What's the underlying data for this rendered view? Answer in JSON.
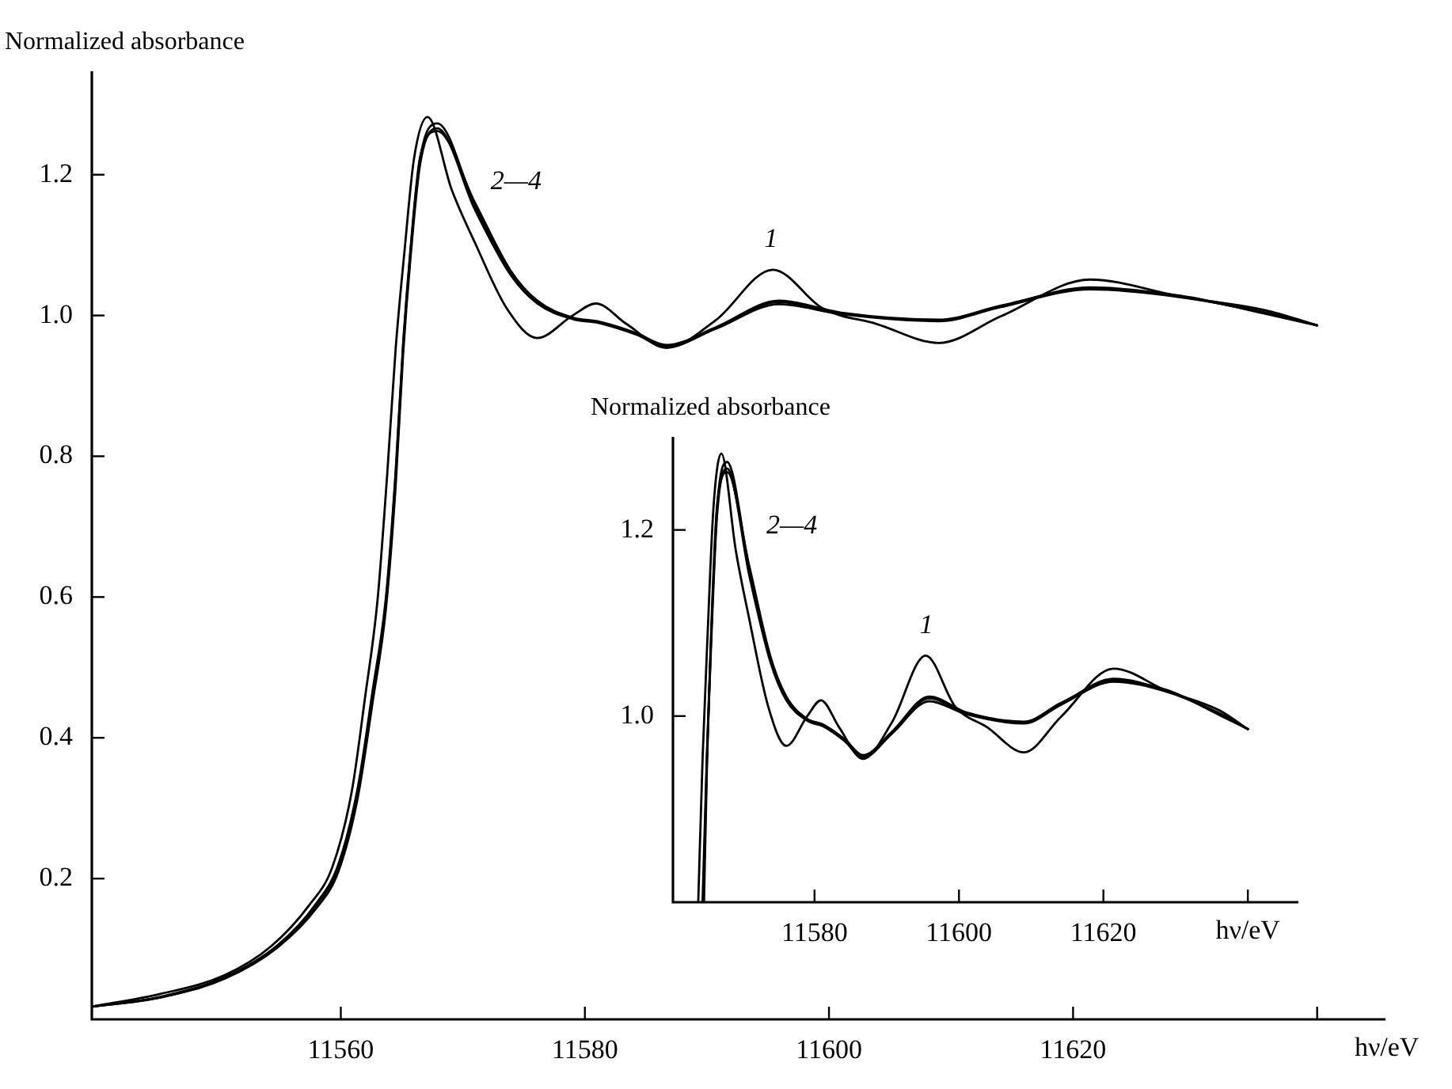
{
  "chart_data": [
    {
      "type": "line",
      "ylabel": "Normalized absorbance",
      "xlabel": "hν/eV",
      "xlim": [
        11539.6,
        11645.6
      ],
      "ylim": [
        0,
        1.347
      ],
      "xticks": [
        11560,
        11580,
        11600,
        11620,
        {
          "value": 11640,
          "label": null
        }
      ],
      "yticks": [
        0.2,
        0.4,
        0.6,
        0.8,
        {
          "value": 1,
          "label": "1.0"
        },
        1.2
      ],
      "marker": "none",
      "line_style": "solid",
      "series": [
        {
          "color": "#000000",
          "x": [
            11539.6,
            11545.2,
            11550.5,
            11554.3,
            11557.4,
            11559.3,
            11560.9,
            11562.0,
            11563.0,
            11563.8,
            11564.5,
            11565.2,
            11566.0,
            11567.1,
            11569.1,
            11571.0,
            11573.6,
            11576.1,
            11579.0,
            11580.9,
            11583.4,
            11586.7,
            11590.7,
            11595.4,
            11599.5,
            11603.9,
            11609.0,
            11614.1,
            11621.4,
            11628.8,
            11636.1,
            11640.0
          ],
          "values": [
            0.018,
            0.036,
            0.063,
            0.104,
            0.162,
            0.216,
            0.324,
            0.459,
            0.594,
            0.774,
            0.954,
            1.088,
            1.223,
            1.282,
            1.178,
            1.103,
            1.01,
            0.968,
            1.0,
            1.017,
            0.988,
            0.954,
            0.993,
            1.065,
            1.01,
            0.988,
            0.961,
            0.999,
            1.051,
            1.027,
            1.006,
            0.986
          ]
        },
        {
          "color": "#000000",
          "x": [
            11539.6,
            11545.2,
            11550.5,
            11554.8,
            11558.0,
            11559.8,
            11561.4,
            11562.6,
            11563.7,
            11564.5,
            11565.1,
            11565.7,
            11566.5,
            11567.9,
            11571.0,
            11573.9,
            11576.1,
            11579.0,
            11581.2,
            11584.2,
            11586.7,
            11590.7,
            11595.9,
            11601.0,
            11609.0,
            11614.1,
            11621.4,
            11628.8,
            11636.1,
            11640.0
          ],
          "values": [
            0.018,
            0.031,
            0.059,
            0.104,
            0.162,
            0.216,
            0.324,
            0.459,
            0.594,
            0.774,
            0.954,
            1.088,
            1.223,
            1.273,
            1.156,
            1.061,
            1.019,
            0.996,
            0.99,
            0.974,
            0.957,
            0.982,
            1.019,
            1.003,
            0.993,
            1.013,
            1.04,
            1.027,
            1.002,
            0.986
          ]
        },
        {
          "color": "#000000",
          "x": [
            11539.6,
            11545.2,
            11550.5,
            11554.8,
            11558.0,
            11559.8,
            11561.4,
            11562.6,
            11563.7,
            11564.5,
            11565.1,
            11565.7,
            11566.5,
            11567.9,
            11571.0,
            11573.9,
            11576.1,
            11579.0,
            11581.2,
            11584.2,
            11586.7,
            11590.7,
            11595.9,
            11601.0,
            11609.0,
            11614.1,
            11621.4,
            11628.8,
            11636.1,
            11640.0
          ],
          "values": [
            0.018,
            0.031,
            0.058,
            0.102,
            0.158,
            0.21,
            0.316,
            0.45,
            0.584,
            0.76,
            0.944,
            1.08,
            1.215,
            1.266,
            1.15,
            1.058,
            1.017,
            0.995,
            0.989,
            0.973,
            0.955,
            0.981,
            1.016,
            1.002,
            0.992,
            1.012,
            1.037,
            1.026,
            1.003,
            0.986
          ]
        },
        {
          "color": "#000000",
          "x": [
            11539.6,
            11545.2,
            11550.5,
            11554.8,
            11558.0,
            11559.8,
            11561.4,
            11562.6,
            11563.7,
            11564.5,
            11565.1,
            11565.7,
            11566.5,
            11567.9,
            11571.0,
            11573.9,
            11576.1,
            11579.0,
            11581.2,
            11584.2,
            11586.7,
            11590.7,
            11595.9,
            11601.0,
            11609.0,
            11614.1,
            11621.4,
            11628.8,
            11636.1,
            11640.0
          ],
          "values": [
            0.018,
            0.032,
            0.06,
            0.105,
            0.165,
            0.22,
            0.33,
            0.466,
            0.6,
            0.78,
            0.958,
            1.092,
            1.225,
            1.262,
            1.16,
            1.064,
            1.021,
            0.997,
            0.991,
            0.975,
            0.958,
            0.983,
            1.021,
            1.004,
            0.994,
            1.014,
            1.038,
            1.028,
            1.001,
            0.986
          ]
        }
      ],
      "annotations": [
        "2—4",
        "1"
      ]
    },
    {
      "type": "line",
      "ylabel": "Normalized absorbance",
      "xlabel": "hν/eV",
      "xlim": [
        11560.4,
        11647
      ],
      "ylim": [
        0.8,
        1.3
      ],
      "xticks": [
        11580,
        11600,
        11620,
        {
          "value": 11640,
          "label": null
        }
      ],
      "yticks": [
        {
          "value": 1,
          "label": "1.0"
        },
        1.2
      ],
      "marker": "none",
      "line_style": "solid",
      "series": [
        {
          "color": "#000000",
          "x": [
            11563.9,
            11564.5,
            11565.2,
            11566.0,
            11567.1,
            11569.1,
            11571.0,
            11573.6,
            11576.1,
            11579.0,
            11580.9,
            11583.4,
            11586.7,
            11590.7,
            11595.4,
            11599.5,
            11603.9,
            11609.0,
            11614.1,
            11621.4,
            11628.8,
            11636.1,
            11640.0
          ],
          "values": [
            0.8,
            0.954,
            1.088,
            1.223,
            1.282,
            1.178,
            1.103,
            1.01,
            0.968,
            1.0,
            1.017,
            0.988,
            0.954,
            0.993,
            1.065,
            1.01,
            0.988,
            0.961,
            0.999,
            1.051,
            1.027,
            1.006,
            0.986
          ]
        },
        {
          "color": "#000000",
          "x": [
            11564.6,
            11565.1,
            11565.7,
            11566.5,
            11567.9,
            11571.0,
            11573.9,
            11576.1,
            11579.0,
            11581.2,
            11584.2,
            11586.7,
            11590.7,
            11595.9,
            11601.0,
            11609.0,
            11614.1,
            11621.4,
            11628.8,
            11636.1,
            11640.0
          ],
          "values": [
            0.8,
            0.954,
            1.088,
            1.223,
            1.273,
            1.156,
            1.061,
            1.019,
            0.996,
            0.99,
            0.974,
            0.957,
            0.982,
            1.019,
            1.003,
            0.993,
            1.013,
            1.04,
            1.027,
            1.002,
            0.986
          ]
        },
        {
          "color": "#000000",
          "x": [
            11564.7,
            11565.1,
            11565.7,
            11566.5,
            11567.9,
            11571.0,
            11573.9,
            11576.1,
            11579.0,
            11581.2,
            11584.2,
            11586.7,
            11590.7,
            11595.9,
            11601.0,
            11609.0,
            11614.1,
            11621.4,
            11628.8,
            11636.1,
            11640.0
          ],
          "values": [
            0.8,
            0.944,
            1.08,
            1.215,
            1.266,
            1.15,
            1.058,
            1.017,
            0.995,
            0.989,
            0.973,
            0.955,
            0.981,
            1.016,
            1.002,
            0.992,
            1.012,
            1.037,
            1.026,
            1.003,
            0.986
          ]
        },
        {
          "color": "#000000",
          "x": [
            11564.5,
            11565.1,
            11565.7,
            11566.5,
            11567.9,
            11571.0,
            11573.9,
            11576.1,
            11579.0,
            11581.2,
            11584.2,
            11586.7,
            11590.7,
            11595.9,
            11601.0,
            11609.0,
            11614.1,
            11621.4,
            11628.8,
            11636.1,
            11640.0
          ],
          "values": [
            0.8,
            0.958,
            1.092,
            1.225,
            1.262,
            1.16,
            1.064,
            1.021,
            0.997,
            0.991,
            0.975,
            0.958,
            0.983,
            1.021,
            1.004,
            0.994,
            1.014,
            1.038,
            1.028,
            1.001,
            0.986
          ]
        }
      ],
      "annotations": [
        "2—4",
        "1"
      ]
    }
  ]
}
